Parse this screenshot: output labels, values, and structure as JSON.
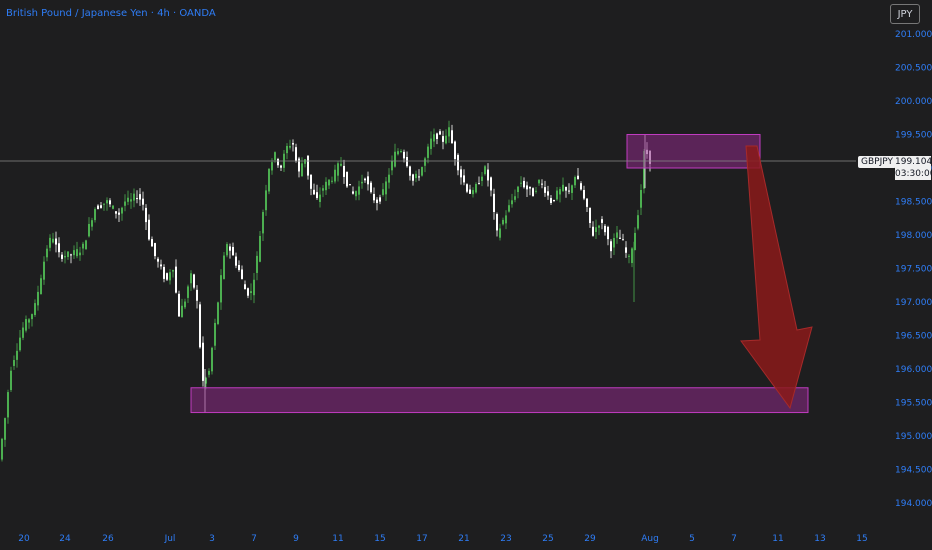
{
  "header": {
    "title": "British Pound / Japanese Yen · 4h · OANDA",
    "currency": "JPY"
  },
  "badge": {
    "symbol": "GBPJPY",
    "price": "199.104",
    "countdown": "03:30:00"
  },
  "colors": {
    "background": "#1e1e1f",
    "up": "#4caf50",
    "down": "#ffffff",
    "zone": "#8e2a86",
    "arrow": "#8b1a1a",
    "axis_text": "#2f7df6"
  },
  "chart_data": {
    "type": "candlestick",
    "title": "British Pound / Japanese Yen · 4h · OANDA",
    "ylim": [
      193.8,
      201.3
    ],
    "y_ticks": [
      "194.000",
      "194.500",
      "195.000",
      "195.500",
      "196.000",
      "196.500",
      "197.000",
      "197.500",
      "198.000",
      "198.500",
      "199.000",
      "199.500",
      "200.000",
      "200.500",
      "201.000"
    ],
    "x_ticks": [
      "20",
      "24",
      "26",
      "Jul",
      "3",
      "7",
      "9",
      "11",
      "15",
      "17",
      "21",
      "23",
      "25",
      "29",
      "Aug",
      "5",
      "7",
      "11",
      "13",
      "15"
    ],
    "last_price": 199.104,
    "anchors": [
      [
        0,
        194.6
      ],
      [
        6,
        195.2
      ],
      [
        12,
        196.0
      ],
      [
        24,
        196.6
      ],
      [
        36,
        196.9
      ],
      [
        48,
        197.8
      ],
      [
        54,
        198.0
      ],
      [
        60,
        197.7
      ],
      [
        72,
        197.7
      ],
      [
        84,
        197.8
      ],
      [
        96,
        198.4
      ],
      [
        108,
        198.5
      ],
      [
        120,
        198.3
      ],
      [
        126,
        198.5
      ],
      [
        132,
        198.5
      ],
      [
        138,
        198.6
      ],
      [
        144,
        198.5
      ],
      [
        150,
        198.0
      ],
      [
        156,
        197.7
      ],
      [
        162,
        197.5
      ],
      [
        168,
        197.3
      ],
      [
        174,
        197.6
      ],
      [
        180,
        196.8
      ],
      [
        186,
        197.0
      ],
      [
        192,
        197.4
      ],
      [
        198,
        197.1
      ],
      [
        204,
        195.8
      ],
      [
        210,
        195.9
      ],
      [
        216,
        196.6
      ],
      [
        222,
        197.3
      ],
      [
        228,
        197.9
      ],
      [
        234,
        197.7
      ],
      [
        240,
        197.5
      ],
      [
        246,
        197.2
      ],
      [
        252,
        197.1
      ],
      [
        258,
        197.6
      ],
      [
        264,
        198.3
      ],
      [
        270,
        199.0
      ],
      [
        276,
        199.2
      ],
      [
        282,
        199.0
      ],
      [
        288,
        199.3
      ],
      [
        294,
        199.4
      ],
      [
        300,
        198.9
      ],
      [
        306,
        199.2
      ],
      [
        312,
        198.7
      ],
      [
        318,
        198.5
      ],
      [
        324,
        198.7
      ],
      [
        330,
        198.8
      ],
      [
        336,
        198.9
      ],
      [
        342,
        199.1
      ],
      [
        348,
        198.8
      ],
      [
        354,
        198.6
      ],
      [
        360,
        198.7
      ],
      [
        366,
        198.9
      ],
      [
        372,
        198.6
      ],
      [
        378,
        198.5
      ],
      [
        384,
        198.6
      ],
      [
        390,
        198.9
      ],
      [
        396,
        199.2
      ],
      [
        402,
        199.3
      ],
      [
        408,
        199.1
      ],
      [
        414,
        198.8
      ],
      [
        420,
        198.9
      ],
      [
        426,
        199.1
      ],
      [
        432,
        199.4
      ],
      [
        438,
        199.5
      ],
      [
        444,
        199.4
      ],
      [
        450,
        199.6
      ],
      [
        456,
        199.2
      ],
      [
        462,
        198.9
      ],
      [
        468,
        198.7
      ],
      [
        474,
        198.6
      ],
      [
        480,
        198.8
      ],
      [
        486,
        199.0
      ],
      [
        492,
        198.7
      ],
      [
        498,
        198.0
      ],
      [
        504,
        198.2
      ],
      [
        510,
        198.4
      ],
      [
        516,
        198.6
      ],
      [
        522,
        198.8
      ],
      [
        528,
        198.7
      ],
      [
        534,
        198.6
      ],
      [
        540,
        198.8
      ],
      [
        546,
        198.7
      ],
      [
        552,
        198.5
      ],
      [
        558,
        198.6
      ],
      [
        564,
        198.7
      ],
      [
        570,
        198.6
      ],
      [
        576,
        198.9
      ],
      [
        582,
        198.7
      ],
      [
        588,
        198.4
      ],
      [
        594,
        198.0
      ],
      [
        600,
        198.2
      ],
      [
        606,
        198.1
      ],
      [
        612,
        197.8
      ],
      [
        618,
        198.0
      ],
      [
        624,
        197.9
      ],
      [
        630,
        197.6
      ],
      [
        636,
        198.0
      ],
      [
        642,
        198.6
      ],
      [
        646,
        199.3
      ],
      [
        652,
        199.1
      ]
    ],
    "zones": [
      {
        "from_x": 627,
        "to_x": 760,
        "low": 199.0,
        "high": 199.5
      },
      {
        "from_x": 191,
        "to_x": 808,
        "low": 195.35,
        "high": 195.72
      }
    ]
  }
}
